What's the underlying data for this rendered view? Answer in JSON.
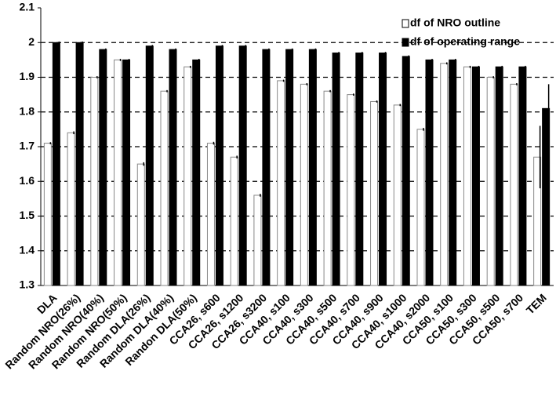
{
  "chart_data": {
    "type": "bar",
    "categories": [
      "DLA",
      "Random NRO(26%)",
      "Random NRO(40%)",
      "Random NRO(50%)",
      "Random DLA(26%)",
      "Random DLA(40%)",
      "Randon DLA(50%)",
      "CCA26, s600",
      "CCA26, s1200",
      "CCA26, s3200",
      "CCA40, s100",
      "CCA40, s300",
      "CCA40, s500",
      "CCA40, s700",
      "CCA40, s900",
      "CCA40, s1000",
      "CCA40, s2000",
      "CCA50, s100",
      "CCA50, s300",
      "CCA50, s500",
      "CCA50, s700",
      "TEM"
    ],
    "series": [
      {
        "name": "df of NRO outline",
        "color": "#ffffff",
        "values": [
          1.71,
          1.74,
          1.9,
          1.95,
          1.65,
          1.86,
          1.93,
          1.71,
          1.67,
          1.56,
          1.89,
          1.88,
          1.86,
          1.85,
          1.83,
          1.82,
          1.75,
          1.94,
          1.93,
          1.9,
          1.88,
          1.67
        ],
        "errors": [
          0.003,
          0.004,
          0.003,
          0.003,
          0.005,
          0.003,
          0.003,
          0.004,
          0.004,
          0.004,
          0.003,
          0.003,
          0.003,
          0.003,
          0.003,
          0.003,
          0.004,
          0.003,
          0.003,
          0.003,
          0.003,
          0.09
        ]
      },
      {
        "name": "df of operating range",
        "color": "#000000",
        "values": [
          2.0,
          2.0,
          1.98,
          1.95,
          1.99,
          1.98,
          1.95,
          1.99,
          1.99,
          1.98,
          1.98,
          1.98,
          1.97,
          1.97,
          1.97,
          1.96,
          1.95,
          1.95,
          1.93,
          1.93,
          1.93,
          1.81
        ],
        "errors": [
          0.003,
          0.003,
          0.003,
          0.003,
          0.003,
          0.003,
          0.003,
          0.003,
          0.003,
          0.003,
          0.003,
          0.003,
          0.003,
          0.003,
          0.003,
          0.003,
          0.003,
          0.003,
          0.003,
          0.003,
          0.003,
          0.07
        ]
      }
    ],
    "ylim": [
      1.3,
      2.1
    ],
    "yticks": [
      1.3,
      1.4,
      1.5,
      1.6,
      1.7,
      1.8,
      1.9,
      2,
      2.1
    ],
    "grid": true,
    "legend": "top-right"
  }
}
